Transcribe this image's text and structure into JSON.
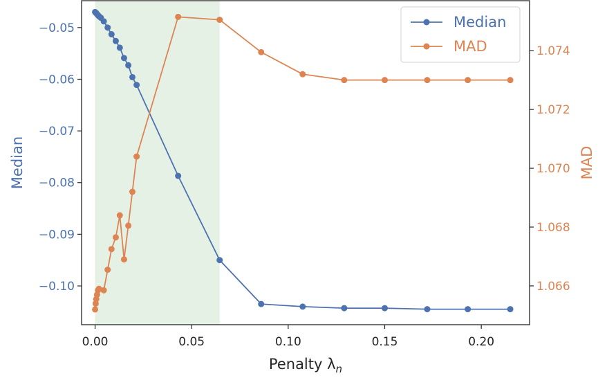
{
  "chart_data": {
    "type": "line",
    "xlabel": "Penalty λ",
    "xlabel_sub": "n",
    "ylabel_left": "Median",
    "ylabel_right": "MAD",
    "xlim": [
      -0.007,
      0.225
    ],
    "ylim_left": [
      -0.1075,
      -0.0448
    ],
    "ylim_right": [
      1.06468,
      1.0757
    ],
    "x_ticks": [
      0.0,
      0.05,
      0.1,
      0.15,
      0.2
    ],
    "x_tick_labels": [
      "0.00",
      "0.05",
      "0.10",
      "0.15",
      "0.20"
    ],
    "left_ticks": [
      -0.05,
      -0.06,
      -0.07,
      -0.08,
      -0.09,
      -0.1
    ],
    "left_tick_labels": [
      "−0.05",
      "−0.06",
      "−0.07",
      "−0.08",
      "−0.09",
      "−0.10"
    ],
    "right_ticks": [
      1.066,
      1.068,
      1.07,
      1.072,
      1.074
    ],
    "right_tick_labels": [
      "1.066",
      "1.068",
      "1.070",
      "1.072",
      "1.074"
    ],
    "shaded_region": {
      "x": [
        0.0,
        0.0645
      ],
      "color": "#e5f1e5"
    },
    "legend_position": "top-right",
    "grid": false,
    "series": [
      {
        "name": "Median",
        "axis": "left",
        "color": "#4c72b0",
        "x": [
          0.0,
          0.0003,
          0.0006,
          0.001,
          0.0015,
          0.002,
          0.003,
          0.0045,
          0.0065,
          0.0085,
          0.0107,
          0.0128,
          0.015,
          0.0172,
          0.0193,
          0.0215,
          0.043,
          0.0645,
          0.086,
          0.1075,
          0.129,
          0.15,
          0.172,
          0.193,
          0.215
        ],
        "y": [
          -0.047,
          -0.0471,
          -0.0472,
          -0.0474,
          -0.0476,
          -0.0478,
          -0.0481,
          -0.0488,
          -0.05,
          -0.0513,
          -0.0526,
          -0.0539,
          -0.0559,
          -0.0573,
          -0.0596,
          -0.0611,
          -0.0787,
          -0.095,
          -0.1035,
          -0.104,
          -0.1043,
          -0.1043,
          -0.1045,
          -0.1045,
          -0.1045
        ]
      },
      {
        "name": "MAD",
        "axis": "right",
        "color": "#dd8452",
        "x": [
          0.0,
          0.0003,
          0.0006,
          0.001,
          0.0015,
          0.002,
          0.0045,
          0.0065,
          0.0085,
          0.0107,
          0.0128,
          0.015,
          0.0172,
          0.0193,
          0.0215,
          0.043,
          0.0645,
          0.086,
          0.1075,
          0.129,
          0.15,
          0.172,
          0.193,
          0.215
        ],
        "y": [
          1.0652,
          1.0654,
          1.06555,
          1.0657,
          1.06585,
          1.0659,
          1.06585,
          1.06655,
          1.06725,
          1.06765,
          1.0684,
          1.0669,
          1.06805,
          1.0692,
          1.0704,
          1.07515,
          1.07505,
          1.07395,
          1.0732,
          1.073,
          1.073,
          1.073,
          1.073,
          1.073
        ]
      }
    ]
  }
}
